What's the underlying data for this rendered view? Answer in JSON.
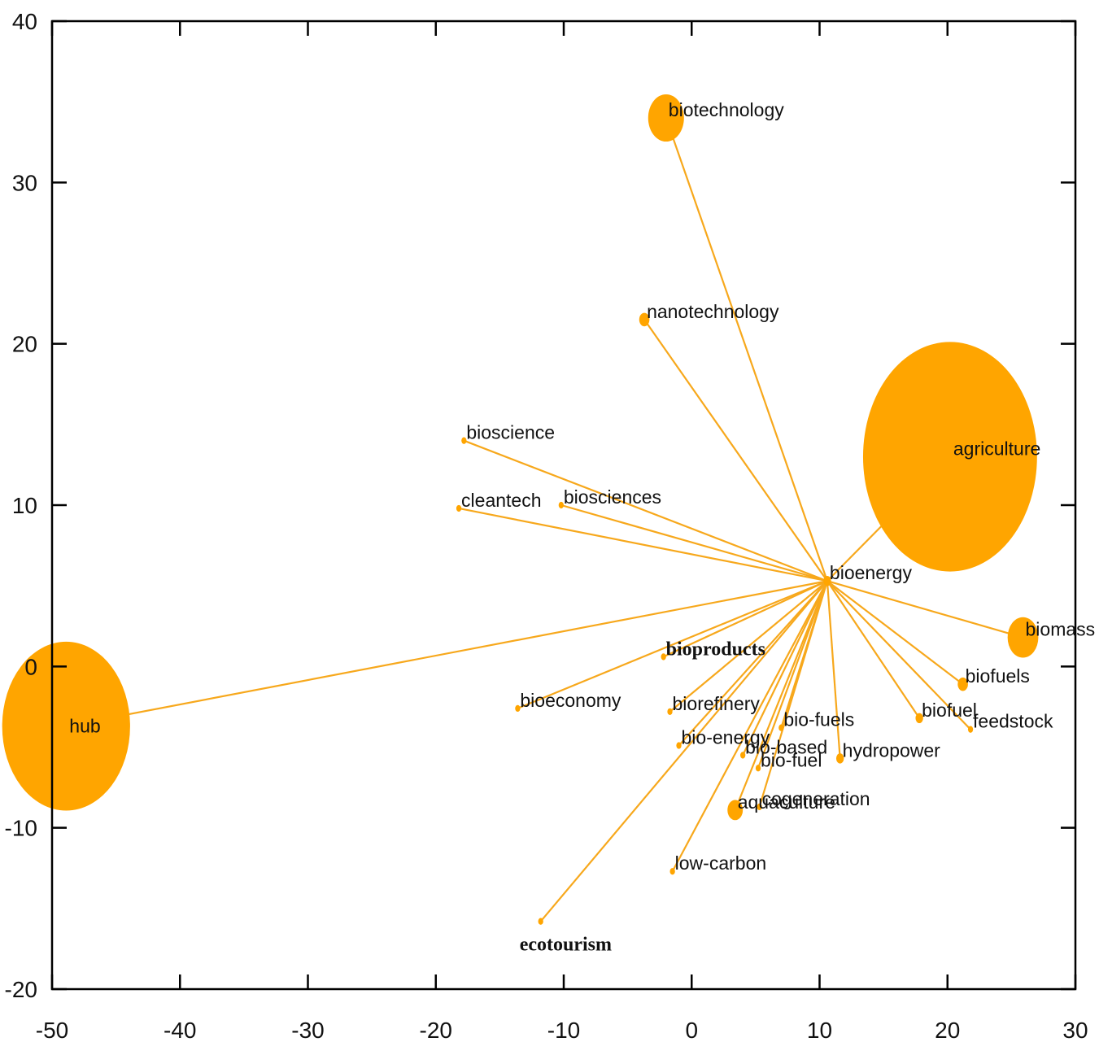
{
  "chart_data": {
    "type": "scatter",
    "title": "",
    "xlabel": "",
    "ylabel": "",
    "xlim": [
      -50,
      30
    ],
    "ylim": [
      -20,
      40
    ],
    "xticks": [
      "-50",
      "-40",
      "-30",
      "-20",
      "-10",
      "0",
      "10",
      "20",
      "30"
    ],
    "yticks": [
      "-20",
      "-10",
      "0",
      "10",
      "20",
      "30",
      "40"
    ],
    "grid": false,
    "colors": {
      "node": "#ffa500",
      "edge": "#f7a81c",
      "frame": "#000000"
    },
    "center": "bioenergy",
    "nodes": [
      {
        "label": "bioenergy",
        "x": 10.6,
        "y": 5.3,
        "size": 0.3
      },
      {
        "label": "biotechnology",
        "x": -2.0,
        "y": 34.0,
        "size": 1.4
      },
      {
        "label": "nanotechnology",
        "x": -3.7,
        "y": 21.5,
        "size": 0.4
      },
      {
        "label": "bioscience",
        "x": -17.8,
        "y": 14.0,
        "size": 0.2
      },
      {
        "label": "biosciences",
        "x": -10.2,
        "y": 10.0,
        "size": 0.2
      },
      {
        "label": "cleantech",
        "x": -18.2,
        "y": 9.8,
        "size": 0.2
      },
      {
        "label": "agriculture",
        "x": 20.2,
        "y": 13.0,
        "size": 6.8
      },
      {
        "label": "biomass",
        "x": 25.9,
        "y": 1.8,
        "size": 1.2
      },
      {
        "label": "biofuels",
        "x": 21.2,
        "y": -1.1,
        "size": 0.4
      },
      {
        "label": "biofuel",
        "x": 17.8,
        "y": -3.2,
        "size": 0.3
      },
      {
        "label": "feedstock",
        "x": 21.8,
        "y": -3.9,
        "size": 0.2
      },
      {
        "label": "hub",
        "x": -48.9,
        "y": -3.7,
        "size": 5.0
      },
      {
        "label": "bioproducts",
        "x": -2.2,
        "y": 0.6,
        "size": 0.2
      },
      {
        "label": "bioeconomy",
        "x": -13.6,
        "y": -2.6,
        "size": 0.2
      },
      {
        "label": "biorefinery",
        "x": -1.7,
        "y": -2.8,
        "size": 0.2
      },
      {
        "label": "bio-fuels",
        "x": 7.0,
        "y": -3.8,
        "size": 0.2
      },
      {
        "label": "bio-energy",
        "x": -1.0,
        "y": -4.9,
        "size": 0.2
      },
      {
        "label": "bio-based",
        "x": 4.0,
        "y": -5.5,
        "size": 0.2
      },
      {
        "label": "hydropower",
        "x": 11.6,
        "y": -5.7,
        "size": 0.3
      },
      {
        "label": "bio-fuel",
        "x": 5.2,
        "y": -6.3,
        "size": 0.2
      },
      {
        "label": "aquaculture",
        "x": 3.4,
        "y": -8.9,
        "size": 0.6
      },
      {
        "label": "cogeneration",
        "x": 5.3,
        "y": -8.7,
        "size": 0.2
      },
      {
        "label": "low-carbon",
        "x": -1.5,
        "y": -12.7,
        "size": 0.2
      },
      {
        "label": "ecotourism",
        "x": -11.8,
        "y": -15.8,
        "size": 0.2
      }
    ]
  }
}
